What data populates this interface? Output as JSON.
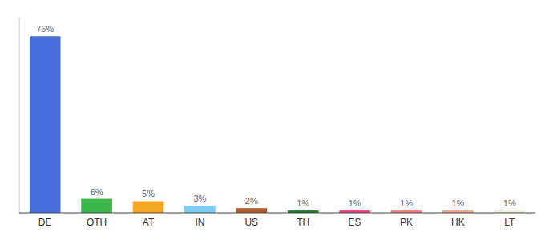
{
  "chart_data": {
    "type": "bar",
    "categories": [
      "DE",
      "OTH",
      "AT",
      "IN",
      "US",
      "TH",
      "ES",
      "PK",
      "HK",
      "LT"
    ],
    "values": [
      76,
      6,
      5,
      3,
      2,
      1,
      1,
      1,
      1,
      1
    ],
    "value_labels": [
      "76%",
      "6%",
      "5%",
      "3%",
      "2%",
      "1%",
      "1%",
      "1%",
      "1%",
      "1%"
    ],
    "colors": [
      "#4a6fdc",
      "#3cb54a",
      "#f5a623",
      "#7ecef4",
      "#b05b2a",
      "#1a7a2a",
      "#e8417a",
      "#f08080",
      "#f4a58a",
      "#f0eed8"
    ],
    "ylim": [
      0,
      84
    ],
    "grid": false,
    "data_labels": true,
    "tick_labels": "x"
  }
}
